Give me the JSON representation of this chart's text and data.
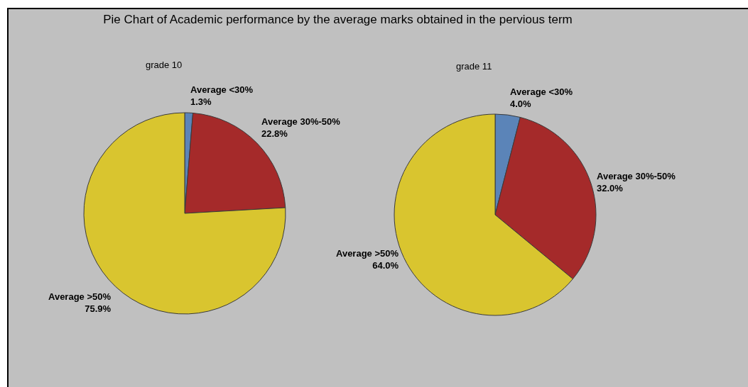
{
  "chart_data": {
    "type": "pie",
    "title": "Pie Chart of Academic performance by the average marks obtained in the pervious term",
    "categories": [
      "Average <30%",
      "Average 30%-50%",
      "Average >50%"
    ],
    "colors": [
      "#5b84b8",
      "#a52a2a",
      "#d9c52f"
    ],
    "series": [
      {
        "name": "grade 10",
        "values": [
          1.3,
          22.8,
          75.9
        ],
        "value_labels": [
          "1.3%",
          "22.8%",
          "75.9%"
        ]
      },
      {
        "name": "grade 11",
        "values": [
          4.0,
          32.0,
          64.0
        ],
        "value_labels": [
          "4.0%",
          "32.0%",
          "64.0%"
        ]
      }
    ]
  }
}
